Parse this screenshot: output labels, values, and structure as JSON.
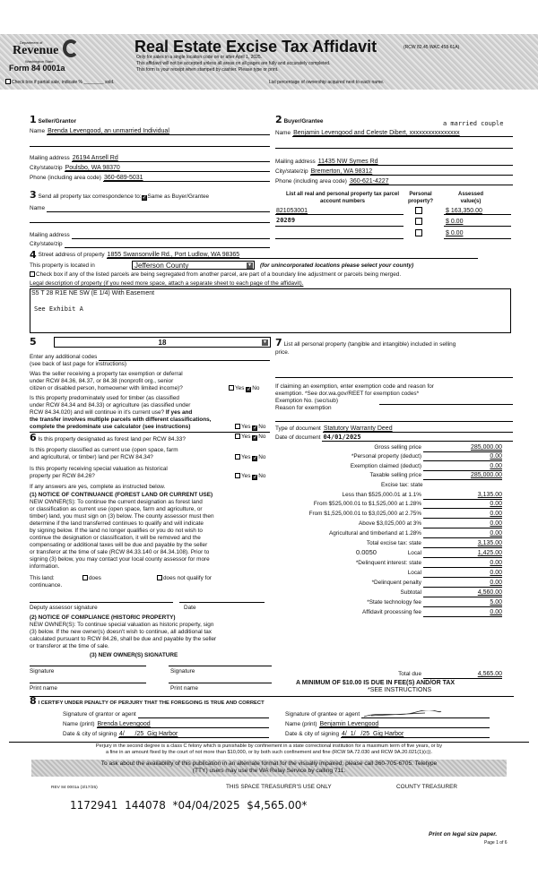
{
  "header": {
    "agency_small": "Department of",
    "agency": "Revenue",
    "agency_state": "Washington State",
    "form_no": "Form 84 0001a",
    "title": "Real Estate Excise Tax Affidavit",
    "rcw": "(RCW 82.45 WAC 458-61A)",
    "line1": "Only for sales in a single location code on or after April 1, 2025.",
    "line2": "This affidavit will not be accepted unless all areas on all pages are fully and accurately completed.",
    "line3": "This form is your receipt when stamped by cashier. Please type or print.",
    "partial_sale": "Check box if partial sale, indicate % ________ sold.",
    "ownership_note": "List percentage of ownership acquired next to each name."
  },
  "s1": {
    "num": "1",
    "heading": "Seller/Grantor",
    "name_label": "Name",
    "name": "Brenda Levengood, an unmarried Individual",
    "mail_label": "Mailing address",
    "mail": "26194 Ansell Rd",
    "city_label": "City/state/zip",
    "city": "Poulsbo, WA 98370",
    "phone_label": "Phone (including area code)",
    "phone": "360-689-5031"
  },
  "s2": {
    "num": "2",
    "heading": "Buyer/Grantee",
    "note": "a married couple",
    "name_label": "Name",
    "name": "Benjamin Levengood and Celeste Dibert, xxxxxxxxxxxxxxxx",
    "mail_label": "Mailing address",
    "mail": "11435 NW Symes Rd",
    "city_label": "City/state/zip",
    "city": "Bremerton, WA 98312",
    "phone_label": "Phone (including area code)",
    "phone": "360-621-4227"
  },
  "s3": {
    "num": "3",
    "text": "Send all property tax correspondence to:",
    "same": "Same as Buyer/Grantee",
    "name_label": "Name",
    "mail_label": "Mailing address",
    "city_label": "City/state/zip"
  },
  "parcels": {
    "col1": "List all real and personal property tax parcel account numbers",
    "col2": "Personal property?",
    "col3": "Assessed value(s)",
    "rows": [
      {
        "num": "821053001",
        "value": "$ 163,350.00"
      },
      {
        "num": "20289",
        "value": "$ 0.00"
      },
      {
        "num": "",
        "value": "$ 0.00"
      }
    ]
  },
  "s4": {
    "num": "4",
    "addr_label": "Street address of property",
    "addr": "1855 Swansonville Rd., Port Ludlow, WA 98365",
    "located_label": "This property is located in",
    "county": "Jefferson County",
    "county_note": "(for unincorporated locations please select your county)",
    "segregate": "Check box if any of the listed parcels are being segregated from another parcel, are part of a boundary line adjustment or parcels being merged.",
    "legal_label": "Legal description of property (if you need more space, attach a separate sheet to each page of the affidavit).",
    "legal1": "S5 T 28 R1E NE SW (E 1/4) With Easement",
    "legal2": "See Exhibit A"
  },
  "s5": {
    "num": "5",
    "code": "18",
    "addl": "Enter any additional codes",
    "addl_note": "(see back of last page for instructions)",
    "q1": [
      "Was the seller receiving a property tax exemption or deferral",
      "under RCW 84.36, 84.37, or 84.38 (nonprofit org., senior",
      "citizen or disabled person, homeowner with limited income)?"
    ],
    "q2": [
      "Is this property predominately used for timber (as classified",
      "under RCW 84.34 and 84.33) or agriculture (as classified under",
      "RCW 84.34.020) and will continue in it's current use?"
    ],
    "q2b": [
      "If yes and",
      "the transfer involves multiple parcels with different classifications,",
      "complete the predominate use calculator (see instructions)"
    ],
    "yes": "Yes",
    "no": "No"
  },
  "s6": {
    "num": "6",
    "q1": "Is this property designated as forest land per RCW 84.33?",
    "q2": [
      "Is this property classified as current use (open space, farm",
      "and agricultural, or timber) land per RCW 84.34?"
    ],
    "q3": [
      "Is this property receiving special valuation as historical",
      "property per RCW 84.26?"
    ],
    "ifyes": "If any answers are yes, complete as instructed below.",
    "n1_title": "(1) NOTICE OF CONTINUANCE (FOREST LAND OR CURRENT USE)",
    "n1": [
      "NEW OWNER(S): To continue the current designation as forest land",
      "or classification as current use (open space, farm and agriculture, or",
      "timber) land, you must sign on (3) below. The county assessor must then",
      "determine if the land transferred continues to qualify and will indicate",
      "by signing below. If the land no longer qualifies or you do not wish to",
      "continue the designation or classification, it will be removed and the",
      "compensating or additional taxes will be due and payable by the seller",
      "or transferor at the time of sale (RCW 84.33.140 or 84.34.108). Prior to",
      "signing (3) below, you may contact your local county assessor for more",
      "information."
    ],
    "this_land": "This land:",
    "does": "does",
    "does_not": "does not qualify for",
    "continuance": "continuance.",
    "deputy": "Deputy assessor signature",
    "date": "Date",
    "n2_title": "(2) NOTICE OF COMPLIANCE (HISTORIC PROPERTY)",
    "n2": [
      "NEW OWNER(S): To continue special valuation as historic property, sign",
      "(3) below. If the new owner(s) doesn't wish to continue, all additional tax",
      "calculated pursuant to RCW 84.26, shall be due and payable by the seller",
      "or transferor at the time of sale."
    ],
    "n3_title": "(3) NEW OWNER(S) SIGNATURE",
    "signature": "Signature",
    "print_name": "Print name"
  },
  "s7": {
    "num": "7",
    "text": [
      "List all personal property (tangible and intangible) included in selling",
      "price."
    ],
    "exempt": [
      "If claiming an exemption, enter exemption code and reason for",
      "exemption. *See dor.wa.gov/REET for exemption codes*"
    ],
    "exempt_no": "Exemption No. (sec/sub)",
    "reason": "Reason for exemption",
    "doc_type_label": "Type of document",
    "doc_type": "Statutory Warranty Deed",
    "doc_date_label": "Date of document",
    "doc_date": "04/01/2025",
    "excise_state": "Excise tax: state",
    "local_rate": "0.0050",
    "minimum": "A MINIMUM OF $10.00 IS DUE IN FEE(S) AND/OR TAX",
    "see_instr": "*SEE INSTRUCTIONS"
  },
  "fees": [
    {
      "label": "Gross selling price",
      "value": "285,000.00"
    },
    {
      "label": "*Personal property (deduct)",
      "value": "0.00"
    },
    {
      "label": "Exemption claimed (deduct)",
      "value": "0.00"
    },
    {
      "label": "Taxable selling price",
      "value": "285,000.00"
    },
    {
      "label": "Less than $525,000.01 at 1.1%",
      "value": "3,135.00"
    },
    {
      "label": "From $525,000.01 to $1,525,000 at 1.28%",
      "value": "0.00"
    },
    {
      "label": "From $1,525,000.01 to $3,025,000 at 2.75%",
      "value": "0.00"
    },
    {
      "label": "Above $3,025,000 at 3%",
      "value": "0.00"
    },
    {
      "label": "Agricultural and timberland at 1.28%",
      "value": "0.00"
    },
    {
      "label": "Total excise tax: state",
      "value": "3,135.00"
    },
    {
      "label": "Local",
      "value": "1,425.00"
    },
    {
      "label": "*Delinquent interest: state",
      "value": "0.00"
    },
    {
      "label": "Local",
      "value": "0.00"
    },
    {
      "label": "*Delinquent penalty",
      "value": "0.00"
    },
    {
      "label": "Subtotal",
      "value": "4,560.00"
    },
    {
      "label": "*State technology fee",
      "value": "5.00"
    },
    {
      "label": "Affidavit processing fee",
      "value": "0.00"
    },
    {
      "label": "Total due",
      "value": "4,565.00"
    }
  ],
  "s8": {
    "num": "8",
    "heading": "I CERTIFY UNDER PENALTY OF PERJURY THAT THE FOREGOING IS TRUE AND CORRECT",
    "sig_grantor": "Signature of grantor or agent",
    "sig_grantee": "Signature of grantee or agent",
    "name_label": "Name (print)",
    "grantor_name": "Brenda Levengood",
    "grantee_name": "Benjamin Levengood",
    "date_label": "Date & city of signing",
    "grantor_date": "4/      /25  Gig Harbor",
    "grantee_date": "4/  1/   /25  Gig Harbor"
  },
  "footer": {
    "perjury1": "Perjury in the second degree is a class C felony which is punishable by confinement in a state correctional institution for a maximum term of five years, or by",
    "perjury2": "a fine in an amount fixed by the court of not more than $10,000, or by both such confinement and fine (RCW 9A.72.030 and RCW 9A.20.021(1)(c)).",
    "alt1": "To ask about the availability of this publication in an alternate format for the visually impaired, please call 360-705-6705. Teletype",
    "alt2": "(TTY) users may use the WA Relay Service by calling 711.",
    "rev": "REV 84 0001a (3/17/25)",
    "treasurer_only": "THIS SPACE TREASURER'S USE ONLY",
    "county_treasurer": "COUNTY TREASURER",
    "stamp": "1172941  144078  *04/04/2025  $4,565.00*",
    "legal_paper": "Print on legal size paper.",
    "page": "Page 1 of 6"
  }
}
